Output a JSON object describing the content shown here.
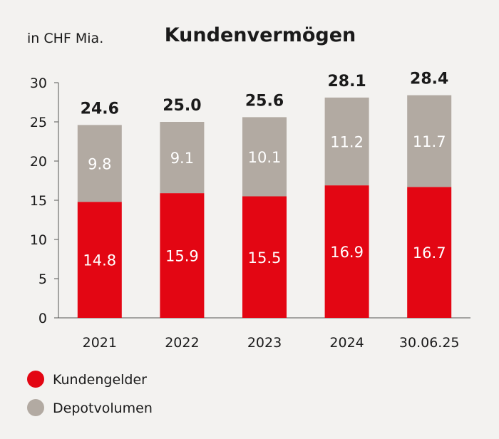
{
  "chart_data": {
    "type": "bar",
    "stacked": true,
    "title": "Kundenvermögen",
    "unit_label": "in CHF Mia.",
    "categories": [
      "2021",
      "2022",
      "2023",
      "2024",
      "30.06.25"
    ],
    "series": [
      {
        "name": "Kundengelder",
        "color": "#e30613",
        "values": [
          14.8,
          15.9,
          15.5,
          16.9,
          16.7
        ]
      },
      {
        "name": "Depotvolumen",
        "color": "#b2aaa2",
        "values": [
          9.8,
          9.1,
          10.1,
          11.2,
          11.7
        ]
      }
    ],
    "totals": [
      "24.6",
      "25.0",
      "25.6",
      "28.1",
      "28.4"
    ],
    "ylim": [
      0,
      30
    ],
    "yticks": [
      0,
      5,
      10,
      15,
      20,
      25,
      30
    ],
    "grid": false,
    "legend": "bottom-left"
  }
}
